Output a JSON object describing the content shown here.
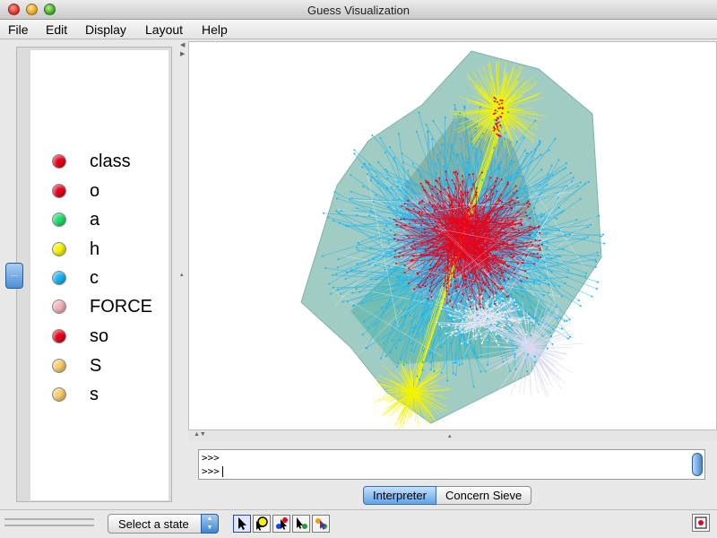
{
  "window": {
    "title": "Guess Visualization"
  },
  "menu": [
    "File",
    "Edit",
    "Display",
    "Layout",
    "Help"
  ],
  "legend": [
    {
      "label": "class",
      "color": "#e8001a"
    },
    {
      "label": "o",
      "color": "#e8001a"
    },
    {
      "label": "a",
      "color": "#1fdd6c"
    },
    {
      "label": "h",
      "color": "#f5f500"
    },
    {
      "label": "c",
      "color": "#14b4f5"
    },
    {
      "label": "FORCE",
      "color": "#f2b3b8"
    },
    {
      "label": "so",
      "color": "#e8001a"
    },
    {
      "label": "S",
      "color": "#f7cc6a"
    },
    {
      "label": "s",
      "color": "#f7cc6a"
    }
  ],
  "console": {
    "lines": [
      ">>>",
      ">>>"
    ]
  },
  "tabs": [
    {
      "label": "Interpreter",
      "active": true
    },
    {
      "label": "Concern Sieve",
      "active": false
    }
  ],
  "toolbar": {
    "state_select": "Select a state",
    "tools": [
      "pointer-tool",
      "zoom-tool",
      "node-move-tool",
      "edge-tool",
      "hull-tool"
    ]
  },
  "colors": {
    "hull": "#8fc3b8",
    "inner_hull": "#4fb3a6",
    "c_edges": "#14b4f5",
    "class_nodes": "#e8001a",
    "h_edges": "#f5f500",
    "force_nodes": "#e6e6f2"
  }
}
